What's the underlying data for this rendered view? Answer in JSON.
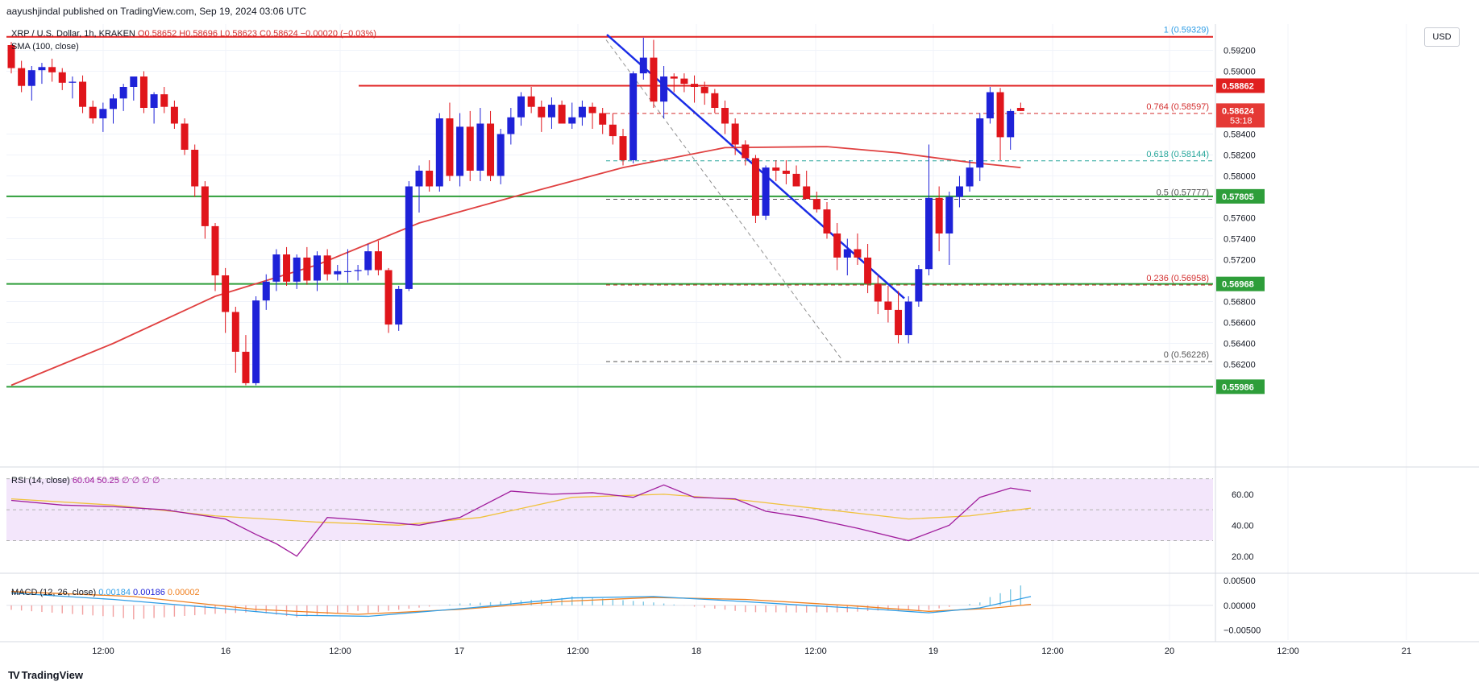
{
  "publisher": "aayushjindal published on TradingView.com, Sep 19, 2024 03:06 UTC",
  "symbol": "XRP / U.S. Dollar, 1h, KRAKEN",
  "ohlc": "O0.58652 H0.58696 L0.58623 C0.58624 −0.00020 (−0.03%)",
  "currency_button": "USD",
  "brand": "TradingView",
  "colors": {
    "up": "#1e22d8",
    "down": "#e0151b",
    "sma": "#e04040",
    "trend": "#1a2ce6",
    "support": "#2e9e3a",
    "resistance": "#e02020",
    "rsi": "#a01c9c",
    "rsi_ma": "#f0c23c",
    "macd": "#2e9de6",
    "signal": "#f08020"
  },
  "sma_label": "SMA (100, close)",
  "rsi_label": "RSI (14, close)",
  "rsi_values": "60.04  50.25  ∅  ∅  ∅  ∅",
  "macd_label": "MACD (12, 26, close)",
  "macd_values": [
    "0.00184",
    "0.00186",
    "0.00002"
  ],
  "price_axis_labels": [
    "0.59200",
    "0.59000",
    "0.58400",
    "0.58200",
    "0.58000",
    "0.57600",
    "0.57400",
    "0.57200",
    "0.56800",
    "0.56600",
    "0.56400",
    "0.56200"
  ],
  "rsi_axis_labels": [
    "60.00",
    "40.00",
    "20.00"
  ],
  "macd_axis_labels": [
    "0.00500",
    "0.00000",
    "−0.00500"
  ],
  "time_axis_labels": [
    "12:00",
    "16",
    "12:00",
    "17",
    "12:00",
    "18",
    "12:00",
    "19",
    "12:00",
    "20",
    "12:00",
    "21"
  ],
  "price_tags": [
    {
      "text": "0.58862",
      "kind": "resistance"
    },
    {
      "text": "0.58624",
      "kind": "last",
      "countdown": "53:18"
    },
    {
      "text": "0.57805",
      "kind": "support"
    },
    {
      "text": "0.56968",
      "kind": "support"
    },
    {
      "text": "0.55986",
      "kind": "support"
    }
  ],
  "fib_labels": [
    {
      "text": "1 (0.59329)",
      "level": 0.59329,
      "color": "#2e9de6"
    },
    {
      "text": "0.764 (0.58597)",
      "level": 0.58597,
      "color": "#d32f2f"
    },
    {
      "text": "0.618 (0.58144)",
      "level": 0.58144,
      "color": "#26a69a"
    },
    {
      "text": "0.5 (0.57777)",
      "level": 0.57777,
      "color": "#555555"
    },
    {
      "text": "0.236 (0.56958)",
      "level": 0.56958,
      "color": "#d32f2f"
    },
    {
      "text": "0 (0.56226)",
      "level": 0.56226,
      "color": "#555555"
    }
  ],
  "chart_data": {
    "type": "candlestick",
    "y_range": [
      0.5585,
      0.5945
    ],
    "candles": [
      [
        0.5925,
        0.5928,
        0.5898,
        0.5903
      ],
      [
        0.5903,
        0.591,
        0.588,
        0.5886
      ],
      [
        0.5886,
        0.5905,
        0.5872,
        0.5901
      ],
      [
        0.5901,
        0.5908,
        0.5888,
        0.5904
      ],
      [
        0.5904,
        0.5912,
        0.589,
        0.5899
      ],
      [
        0.5899,
        0.5903,
        0.5882,
        0.5889
      ],
      [
        0.5889,
        0.5895,
        0.5874,
        0.589
      ],
      [
        0.589,
        0.5896,
        0.586,
        0.5866
      ],
      [
        0.5866,
        0.5872,
        0.585,
        0.5855
      ],
      [
        0.5855,
        0.587,
        0.5842,
        0.5864
      ],
      [
        0.5864,
        0.5878,
        0.585,
        0.5874
      ],
      [
        0.5874,
        0.5888,
        0.5862,
        0.5885
      ],
      [
        0.5885,
        0.5892,
        0.5872,
        0.5895
      ],
      [
        0.5895,
        0.59,
        0.586,
        0.5865
      ],
      [
        0.5865,
        0.588,
        0.585,
        0.5878
      ],
      [
        0.5878,
        0.5885,
        0.586,
        0.5866
      ],
      [
        0.5866,
        0.5872,
        0.5845,
        0.585
      ],
      [
        0.585,
        0.5855,
        0.582,
        0.5825
      ],
      [
        0.5825,
        0.583,
        0.578,
        0.579
      ],
      [
        0.579,
        0.5795,
        0.574,
        0.5752
      ],
      [
        0.5752,
        0.5755,
        0.569,
        0.5705
      ],
      [
        0.5705,
        0.5712,
        0.565,
        0.567
      ],
      [
        0.567,
        0.5675,
        0.5612,
        0.5632
      ],
      [
        0.5632,
        0.5648,
        0.56,
        0.5602
      ],
      [
        0.5602,
        0.5685,
        0.56,
        0.5681
      ],
      [
        0.5681,
        0.5706,
        0.5672,
        0.5699
      ],
      [
        0.5699,
        0.573,
        0.569,
        0.5725
      ],
      [
        0.5725,
        0.5732,
        0.5695,
        0.5699
      ],
      [
        0.5699,
        0.5725,
        0.5692,
        0.5722
      ],
      [
        0.5722,
        0.5732,
        0.5696,
        0.57
      ],
      [
        0.57,
        0.5728,
        0.569,
        0.5724
      ],
      [
        0.5724,
        0.573,
        0.57,
        0.5706
      ],
      [
        0.5706,
        0.5715,
        0.57,
        0.5709
      ],
      [
        0.5709,
        0.573,
        0.5698,
        0.5709
      ],
      [
        0.5709,
        0.5715,
        0.57,
        0.571
      ],
      [
        0.571,
        0.5735,
        0.5705,
        0.5728
      ],
      [
        0.5728,
        0.5738,
        0.5705,
        0.571
      ],
      [
        0.571,
        0.5712,
        0.565,
        0.5658
      ],
      [
        0.5658,
        0.5695,
        0.5652,
        0.5692
      ],
      [
        0.5692,
        0.5795,
        0.569,
        0.579
      ],
      [
        0.579,
        0.581,
        0.5765,
        0.5805
      ],
      [
        0.5805,
        0.5815,
        0.5785,
        0.579
      ],
      [
        0.579,
        0.586,
        0.5785,
        0.5855
      ],
      [
        0.5855,
        0.587,
        0.5795,
        0.58
      ],
      [
        0.58,
        0.586,
        0.579,
        0.5847
      ],
      [
        0.5847,
        0.5862,
        0.5795,
        0.5805
      ],
      [
        0.5805,
        0.5865,
        0.5795,
        0.585
      ],
      [
        0.585,
        0.5862,
        0.5795,
        0.58
      ],
      [
        0.58,
        0.5845,
        0.5792,
        0.584
      ],
      [
        0.584,
        0.5865,
        0.583,
        0.5856
      ],
      [
        0.5856,
        0.588,
        0.5848,
        0.5876
      ],
      [
        0.5876,
        0.5885,
        0.586,
        0.5866
      ],
      [
        0.5866,
        0.5872,
        0.5842,
        0.5856
      ],
      [
        0.5856,
        0.5875,
        0.5845,
        0.5868
      ],
      [
        0.5868,
        0.5872,
        0.585,
        0.585
      ],
      [
        0.585,
        0.587,
        0.5845,
        0.5856
      ],
      [
        0.5856,
        0.5872,
        0.5848,
        0.5866
      ],
      [
        0.5866,
        0.587,
        0.5845,
        0.586
      ],
      [
        0.586,
        0.5865,
        0.584,
        0.5849
      ],
      [
        0.5849,
        0.586,
        0.583,
        0.5838
      ],
      [
        0.5838,
        0.5845,
        0.581,
        0.5815
      ],
      [
        0.5815,
        0.59,
        0.5812,
        0.5898
      ],
      [
        0.5898,
        0.5932,
        0.5892,
        0.5913
      ],
      [
        0.5913,
        0.593,
        0.5865,
        0.5871
      ],
      [
        0.5871,
        0.5905,
        0.5855,
        0.5895
      ],
      [
        0.5895,
        0.5898,
        0.588,
        0.5893
      ],
      [
        0.5893,
        0.5898,
        0.588,
        0.5888
      ],
      [
        0.5888,
        0.5896,
        0.587,
        0.5885
      ],
      [
        0.5885,
        0.589,
        0.5868,
        0.5879
      ],
      [
        0.5879,
        0.5883,
        0.586,
        0.5865
      ],
      [
        0.5865,
        0.5872,
        0.584,
        0.585
      ],
      [
        0.585,
        0.5855,
        0.582,
        0.583
      ],
      [
        0.583,
        0.5834,
        0.581,
        0.5817
      ],
      [
        0.5817,
        0.582,
        0.5755,
        0.5762
      ],
      [
        0.5762,
        0.581,
        0.5758,
        0.5808
      ],
      [
        0.5808,
        0.5815,
        0.5795,
        0.5805
      ],
      [
        0.5805,
        0.5815,
        0.5792,
        0.5802
      ],
      [
        0.5802,
        0.581,
        0.579,
        0.579
      ],
      [
        0.579,
        0.5805,
        0.578,
        0.5778
      ],
      [
        0.5778,
        0.5785,
        0.5765,
        0.5768
      ],
      [
        0.5768,
        0.5775,
        0.574,
        0.5745
      ],
      [
        0.5745,
        0.5755,
        0.571,
        0.5722
      ],
      [
        0.5722,
        0.574,
        0.5705,
        0.573
      ],
      [
        0.573,
        0.5745,
        0.5715,
        0.5722
      ],
      [
        0.5722,
        0.5735,
        0.5688,
        0.5697
      ],
      [
        0.5697,
        0.5705,
        0.5668,
        0.568
      ],
      [
        0.568,
        0.5695,
        0.566,
        0.5672
      ],
      [
        0.5672,
        0.569,
        0.564,
        0.5648
      ],
      [
        0.5648,
        0.5685,
        0.564,
        0.568
      ],
      [
        0.568,
        0.5715,
        0.5675,
        0.5711
      ],
      [
        0.5711,
        0.583,
        0.5705,
        0.5779
      ],
      [
        0.5779,
        0.579,
        0.5728,
        0.5745
      ],
      [
        0.5745,
        0.5785,
        0.5715,
        0.578
      ],
      [
        0.578,
        0.58,
        0.577,
        0.579
      ],
      [
        0.579,
        0.5815,
        0.5785,
        0.5808
      ],
      [
        0.5808,
        0.586,
        0.5795,
        0.5855
      ],
      [
        0.5855,
        0.5885,
        0.585,
        0.588
      ],
      [
        0.588,
        0.5884,
        0.5815,
        0.5837
      ],
      [
        0.5837,
        0.5864,
        0.5825,
        0.5862
      ],
      [
        0.5865,
        0.587,
        0.5862,
        0.5862
      ]
    ],
    "sma100": [
      [
        0,
        0.56
      ],
      [
        10,
        0.564
      ],
      [
        20,
        0.5685
      ],
      [
        30,
        0.5715
      ],
      [
        40,
        0.5755
      ],
      [
        50,
        0.5782
      ],
      [
        60,
        0.5808
      ],
      [
        70,
        0.5827
      ],
      [
        80,
        0.5828
      ],
      [
        87,
        0.5822
      ],
      [
        94,
        0.5813
      ],
      [
        99,
        0.5808
      ]
    ],
    "levels": [
      0.59329,
      0.58862,
      0.57805,
      0.56968,
      0.55986
    ],
    "rsi": [
      [
        0,
        56
      ],
      [
        5,
        53
      ],
      [
        10,
        52
      ],
      [
        15,
        50
      ],
      [
        18,
        47
      ],
      [
        21,
        44
      ],
      [
        24,
        34
      ],
      [
        26,
        28
      ],
      [
        28,
        20
      ],
      [
        31,
        45
      ],
      [
        35,
        43
      ],
      [
        40,
        40
      ],
      [
        44,
        45
      ],
      [
        49,
        62
      ],
      [
        53,
        60
      ],
      [
        57,
        61
      ],
      [
        61,
        58
      ],
      [
        64,
        66
      ],
      [
        67,
        58
      ],
      [
        71,
        57
      ],
      [
        74,
        49
      ],
      [
        78,
        45
      ],
      [
        83,
        38
      ],
      [
        88,
        30
      ],
      [
        92,
        40
      ],
      [
        95,
        58
      ],
      [
        98,
        64
      ],
      [
        100,
        62
      ]
    ],
    "rsi_ma": [
      [
        0,
        57
      ],
      [
        10,
        53
      ],
      [
        20,
        46
      ],
      [
        30,
        42
      ],
      [
        38,
        40
      ],
      [
        46,
        45
      ],
      [
        55,
        58
      ],
      [
        64,
        60
      ],
      [
        72,
        56
      ],
      [
        80,
        50
      ],
      [
        88,
        44
      ],
      [
        94,
        46
      ],
      [
        100,
        51
      ]
    ],
    "macd": [
      [
        0,
        0.0025
      ],
      [
        10,
        0.0012
      ],
      [
        20,
        -0.0005
      ],
      [
        28,
        -0.002
      ],
      [
        35,
        -0.0022
      ],
      [
        45,
        -0.0005
      ],
      [
        55,
        0.0015
      ],
      [
        63,
        0.0018
      ],
      [
        70,
        0.001
      ],
      [
        78,
        0.0
      ],
      [
        85,
        -0.0008
      ],
      [
        90,
        -0.0015
      ],
      [
        95,
        -0.0005
      ],
      [
        100,
        0.0018
      ]
    ],
    "signal": [
      [
        0,
        0.0028
      ],
      [
        12,
        0.0018
      ],
      [
        24,
        -0.0008
      ],
      [
        34,
        -0.0018
      ],
      [
        44,
        -0.0008
      ],
      [
        54,
        0.0008
      ],
      [
        63,
        0.0016
      ],
      [
        72,
        0.0012
      ],
      [
        82,
        0.0
      ],
      [
        90,
        -0.0012
      ],
      [
        96,
        -0.0006
      ],
      [
        100,
        0.0002
      ]
    ],
    "rsi_range": [
      10,
      75
    ],
    "macd_range": [
      -0.007,
      0.006
    ],
    "grid": true
  }
}
